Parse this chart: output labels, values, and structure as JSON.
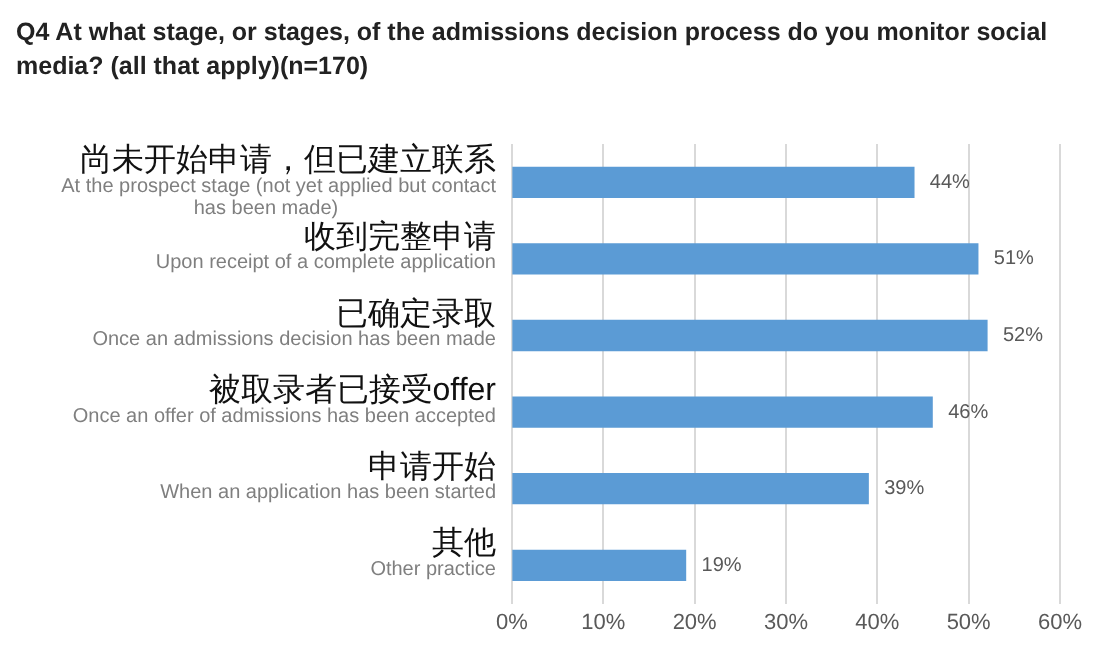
{
  "chart_data": {
    "type": "bar",
    "orientation": "horizontal",
    "title": "Q4 At what stage, or stages, of the admissions decision process do you monitor social media? (all that apply)(n=170)",
    "categories": [
      "尚未开始申请，但已建立联系\nAt the prospect stage (not yet applied but contact has been made)",
      "收到完整申请\nUpon receipt of a complete application",
      "已确定录取\nOnce an admissions decision has been made",
      "被取录者已接受offer\nOnce an offer of admissions has been accepted",
      "申请开始\nWhen an application has been started",
      "其他\nOther practice"
    ],
    "values": [
      44,
      51,
      52,
      46,
      39,
      19
    ],
    "value_labels": [
      "44%",
      "51%",
      "52%",
      "46%",
      "39%",
      "19%"
    ],
    "color": "#5b9bd5",
    "xlim": [
      0,
      60
    ],
    "xticks": [
      {
        "value": 0,
        "label": "0%"
      },
      {
        "value": 10,
        "label": "10%"
      },
      {
        "value": 20,
        "label": "20%"
      },
      {
        "value": 30,
        "label": "30%"
      },
      {
        "value": 40,
        "label": "40%"
      },
      {
        "value": 50,
        "label": "50%"
      },
      {
        "value": 60,
        "label": "60%"
      }
    ],
    "grid": "x"
  }
}
